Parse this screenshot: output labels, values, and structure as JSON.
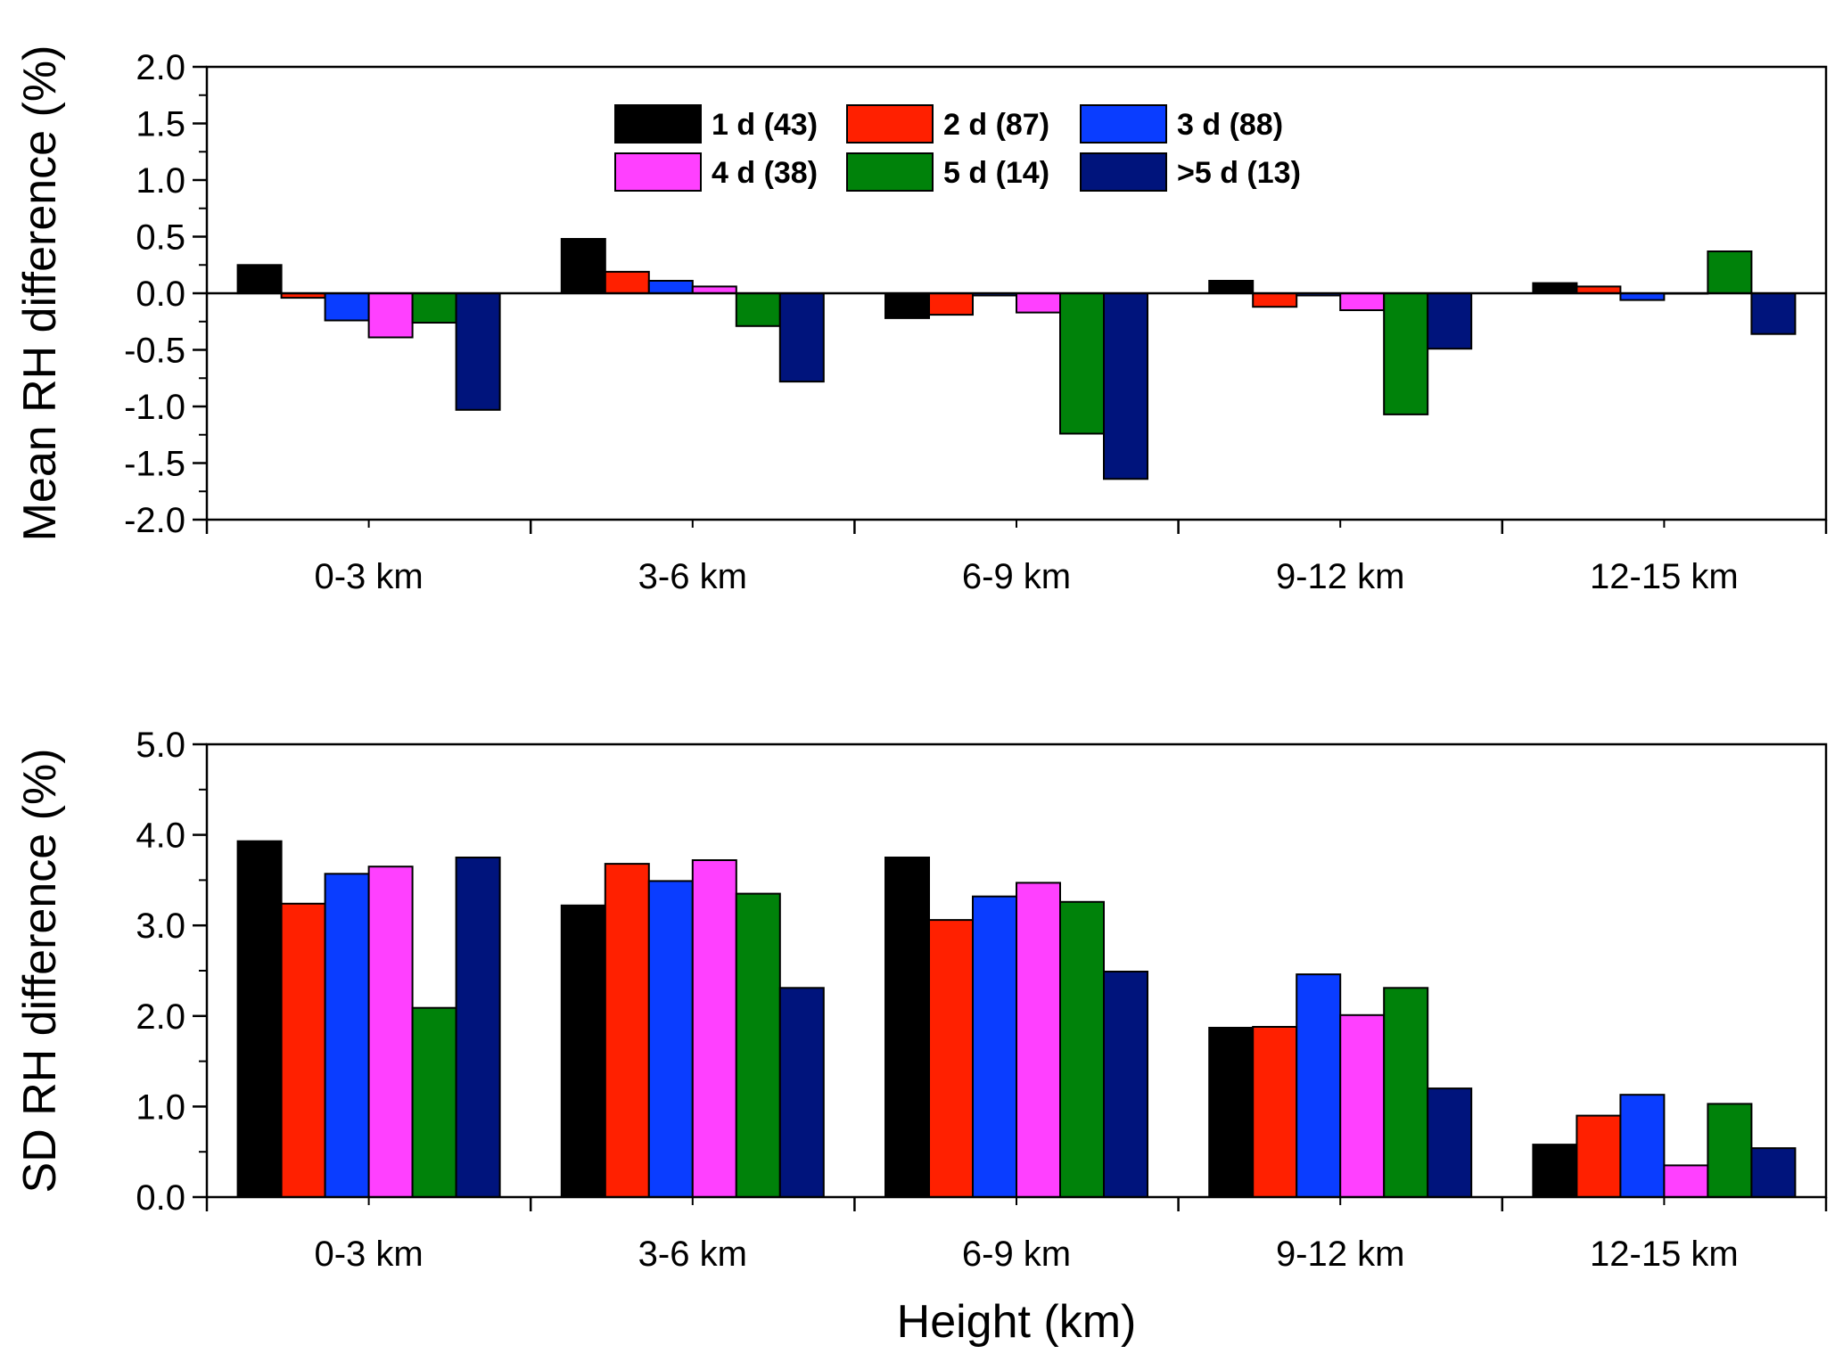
{
  "chart_data": [
    {
      "type": "bar",
      "ylabel": "Mean RH difference (%)",
      "xlabel": "",
      "ylim": [
        -2.0,
        2.0
      ],
      "yticks": [
        "-2.0",
        "-1.5",
        "-1.0",
        "-0.5",
        "0.0",
        "0.5",
        "1.0",
        "1.5",
        "2.0"
      ],
      "categories": [
        "0-3 km",
        "3-6 km",
        "6-9 km",
        "9-12 km",
        "12-15 km"
      ],
      "legend_position": "top-center",
      "series": [
        {
          "name": "1 d (43)",
          "color": "#000000",
          "values": [
            0.25,
            0.48,
            -0.22,
            0.11,
            0.09
          ]
        },
        {
          "name": "2 d (87)",
          "color": "#ff2000",
          "values": [
            -0.04,
            0.19,
            -0.19,
            -0.12,
            0.06
          ]
        },
        {
          "name": "3 d (88)",
          "color": "#0a3dff",
          "values": [
            -0.24,
            0.11,
            -0.02,
            -0.02,
            -0.06
          ]
        },
        {
          "name": "4 d (38)",
          "color": "#ff40ff",
          "values": [
            -0.39,
            0.06,
            -0.17,
            -0.15,
            0.0
          ]
        },
        {
          "name": "5 d (14)",
          "color": "#00820a",
          "values": [
            -0.26,
            -0.29,
            -1.24,
            -1.07,
            0.37
          ]
        },
        {
          "name": ">5 d (13)",
          "color": "#00147c",
          "values": [
            -1.03,
            -0.78,
            -1.64,
            -0.49,
            -0.36
          ]
        }
      ]
    },
    {
      "type": "bar",
      "ylabel": "SD RH difference (%)",
      "xlabel": "Height (km)",
      "ylim": [
        0.0,
        5.0
      ],
      "yticks": [
        "0.0",
        "1.0",
        "2.0",
        "3.0",
        "4.0",
        "5.0"
      ],
      "categories": [
        "0-3 km",
        "3-6 km",
        "6-9 km",
        "9-12 km",
        "12-15 km"
      ],
      "series": [
        {
          "name": "1 d (43)",
          "color": "#000000",
          "values": [
            3.93,
            3.22,
            3.75,
            1.87,
            0.58
          ]
        },
        {
          "name": "2 d (87)",
          "color": "#ff2000",
          "values": [
            3.24,
            3.68,
            3.06,
            1.88,
            0.9
          ]
        },
        {
          "name": "3 d (88)",
          "color": "#0a3dff",
          "values": [
            3.57,
            3.49,
            3.32,
            2.46,
            1.13
          ]
        },
        {
          "name": "4 d (38)",
          "color": "#ff40ff",
          "values": [
            3.65,
            3.72,
            3.47,
            2.01,
            0.35
          ]
        },
        {
          "name": "5 d (14)",
          "color": "#00820a",
          "values": [
            2.09,
            3.35,
            3.26,
            2.31,
            1.03
          ]
        },
        {
          "name": ">5 d (13)",
          "color": "#00147c",
          "values": [
            3.75,
            2.31,
            2.49,
            1.2,
            0.54
          ]
        }
      ]
    }
  ]
}
